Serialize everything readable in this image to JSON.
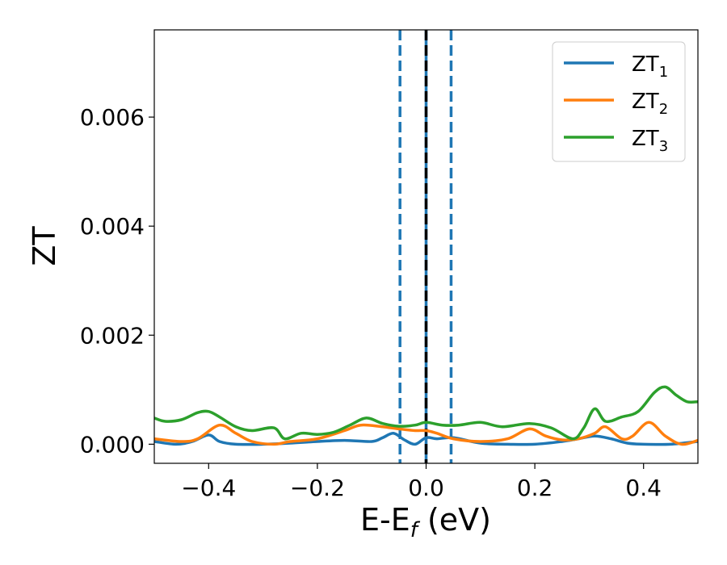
{
  "chart_data": {
    "type": "line",
    "title": "",
    "xlabel": "E-E",
    "xlabel_sub": "f",
    "xlabel_suffix": " (eV)",
    "ylabel": "ZT",
    "xlim": [
      -0.5,
      0.5
    ],
    "ylim": [
      -0.00035,
      0.0076
    ],
    "xticks": [
      -0.4,
      -0.2,
      0.0,
      0.2,
      0.4
    ],
    "xtick_labels": [
      "−0.4",
      "−0.2",
      "0.0",
      "0.2",
      "0.4"
    ],
    "yticks": [
      0.0,
      0.002,
      0.004,
      0.006
    ],
    "ytick_labels": [
      "0.000",
      "0.002",
      "0.004",
      "0.006"
    ],
    "grid": false,
    "legend_position": "top-right",
    "vertical_lines": [
      {
        "x": -0.048,
        "style": "dashed",
        "color": "#1f77b4"
      },
      {
        "x": 0.0,
        "style": "solid",
        "color": "#1f77b4"
      },
      {
        "x": 0.0,
        "style": "dashed",
        "color": "#000000"
      },
      {
        "x": 0.046,
        "style": "dashed",
        "color": "#1f77b4"
      }
    ],
    "series": [
      {
        "name": "ZT",
        "name_sub": "1",
        "color": "#1f77b4",
        "x": [
          -0.5,
          -0.46,
          -0.43,
          -0.4,
          -0.38,
          -0.35,
          -0.3,
          -0.25,
          -0.2,
          -0.15,
          -0.1,
          -0.08,
          -0.06,
          -0.04,
          -0.02,
          0.0,
          0.02,
          0.05,
          0.1,
          0.15,
          0.2,
          0.25,
          0.28,
          0.31,
          0.34,
          0.37,
          0.4,
          0.45,
          0.5
        ],
        "y": [
          5e-05,
          0.0,
          5e-05,
          0.00017,
          5e-05,
          0.0,
          0.0,
          2e-05,
          5e-05,
          7e-05,
          5e-05,
          0.00012,
          0.0002,
          8e-05,
          0.0,
          0.00012,
          0.0001,
          0.00012,
          2e-05,
          0.0,
          0.0,
          5e-05,
          0.0001,
          0.00015,
          0.0001,
          2e-05,
          0.0,
          0.0,
          5e-05
        ]
      },
      {
        "name": "ZT",
        "name_sub": "2",
        "color": "#ff7f0e",
        "x": [
          -0.5,
          -0.45,
          -0.42,
          -0.38,
          -0.35,
          -0.32,
          -0.28,
          -0.25,
          -0.2,
          -0.15,
          -0.12,
          -0.08,
          -0.05,
          -0.02,
          0.0,
          0.02,
          0.05,
          0.1,
          0.15,
          0.19,
          0.22,
          0.25,
          0.28,
          0.31,
          0.33,
          0.36,
          0.38,
          0.41,
          0.44,
          0.47,
          0.5
        ],
        "y": [
          0.0001,
          5e-05,
          0.0001,
          0.00035,
          0.0002,
          5e-05,
          0.0,
          5e-05,
          0.0001,
          0.00025,
          0.00035,
          0.00032,
          0.00028,
          0.00025,
          0.00025,
          0.0002,
          0.0001,
          5e-05,
          0.0001,
          0.00028,
          0.00015,
          8e-05,
          0.0001,
          0.0002,
          0.00032,
          0.0001,
          0.00015,
          0.0004,
          0.00015,
          0.0,
          7e-05
        ]
      },
      {
        "name": "ZT",
        "name_sub": "3",
        "color": "#2ca02c",
        "x": [
          -0.5,
          -0.48,
          -0.45,
          -0.42,
          -0.4,
          -0.38,
          -0.35,
          -0.32,
          -0.28,
          -0.26,
          -0.23,
          -0.2,
          -0.17,
          -0.14,
          -0.11,
          -0.08,
          -0.05,
          -0.02,
          0.0,
          0.03,
          0.06,
          0.1,
          0.14,
          0.19,
          0.23,
          0.27,
          0.29,
          0.31,
          0.33,
          0.36,
          0.39,
          0.42,
          0.44,
          0.46,
          0.48,
          0.5
        ],
        "y": [
          0.00048,
          0.00042,
          0.00045,
          0.00058,
          0.0006,
          0.0005,
          0.00032,
          0.00025,
          0.0003,
          0.0001,
          0.0002,
          0.00018,
          0.00022,
          0.00035,
          0.00048,
          0.00038,
          0.00033,
          0.00035,
          0.0004,
          0.00035,
          0.00035,
          0.0004,
          0.00032,
          0.00038,
          0.0003,
          0.0001,
          0.0003,
          0.00065,
          0.00042,
          0.0005,
          0.0006,
          0.00095,
          0.00105,
          0.0009,
          0.00078,
          0.00078
        ]
      }
    ]
  }
}
